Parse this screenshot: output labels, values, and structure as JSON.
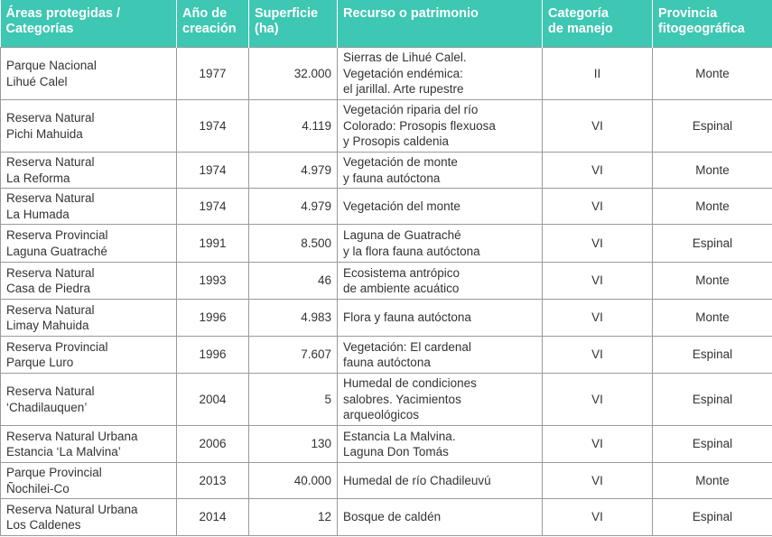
{
  "table": {
    "header": [
      "Áreas protegidas /\nCategorías",
      "Año de\ncreación",
      "Superficie\n(ha)",
      "Recurso o patrimonio",
      "Categoría\nde manejo",
      "Provincia\nfitogeográfica"
    ],
    "rows": [
      [
        "Parque Nacional\nLihué Calel",
        "1977",
        "32.000",
        "Sierras de Lihué Calel.\nVegetación endémica:\nel jarillal. Arte rupestre",
        "II",
        "Monte"
      ],
      [
        "Reserva Natural\nPichi Mahuida",
        "1974",
        "4.119",
        "Vegetación riparia del río\nColorado: Prosopis flexuosa\ny Prosopis caldenia",
        "VI",
        "Espinal"
      ],
      [
        "Reserva Natural\nLa Reforma",
        "1974",
        "4.979",
        "Vegetación de monte\ny fauna autóctona",
        "VI",
        "Monte"
      ],
      [
        "Reserva Natural\nLa Humada",
        "1974",
        "4.979",
        "Vegetación del monte",
        "VI",
        "Monte"
      ],
      [
        "Reserva Provincial\nLaguna Guatraché",
        "1991",
        "8.500",
        "Laguna de Guatraché\ny la flora fauna autóctona",
        "VI",
        "Espinal"
      ],
      [
        "Reserva Natural\nCasa de Piedra",
        "1993",
        "46",
        "Ecosistema antrópico\nde ambiente acuático",
        "VI",
        "Monte"
      ],
      [
        "Reserva Natural\nLimay Mahuida",
        "1996",
        "4.983",
        "Flora y fauna autóctona",
        "VI",
        "Monte"
      ],
      [
        "Reserva Provincial\nParque Luro",
        "1996",
        "7.607",
        "Vegetación: El cardenal\nfauna autóctona",
        "VI",
        "Espinal"
      ],
      [
        "Reserva Natural\n‘Chadilauquen’",
        "2004",
        "5",
        "Humedal de condiciones\nsalobres. Yacimientos\narqueológicos",
        "VI",
        "Espinal"
      ],
      [
        "Reserva Natural Urbana\nEstancia ‘La Malvina’",
        "2006",
        "130",
        "Estancia La Malvina.\nLaguna Don Tomás",
        "VI",
        "Espinal"
      ],
      [
        "Parque Provincial\nÑochilei-Co",
        "2013",
        "40.000",
        "Humedal de río Chadileuvú",
        "VI",
        "Monte"
      ],
      [
        "Reserva Natural Urbana\nLos Caldenes",
        "2014",
        "12",
        "Bosque de caldén",
        "VI",
        "Espinal"
      ]
    ]
  }
}
